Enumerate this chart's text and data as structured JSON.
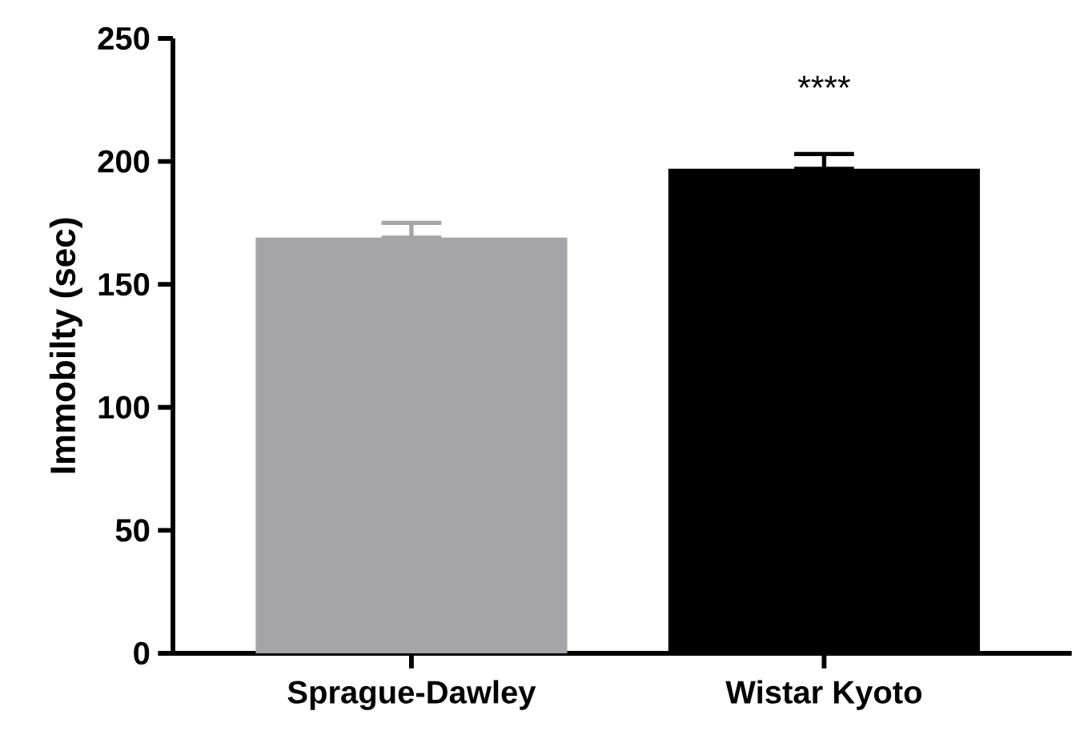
{
  "chart_data": {
    "type": "bar",
    "ylabel": "Immobilty (sec)",
    "categories": [
      "Sprague-Dawley",
      "Wistar Kyoto"
    ],
    "values": [
      169,
      197
    ],
    "colors": [
      "#a5a4a8",
      "#000000"
    ],
    "errors": [
      [
        169,
        175
      ],
      [
        197,
        203
      ]
    ],
    "ylim": [
      0,
      250
    ],
    "yticks": [
      0,
      50,
      100,
      150,
      200,
      250
    ],
    "grid": false,
    "annotations": [
      "****"
    ]
  }
}
